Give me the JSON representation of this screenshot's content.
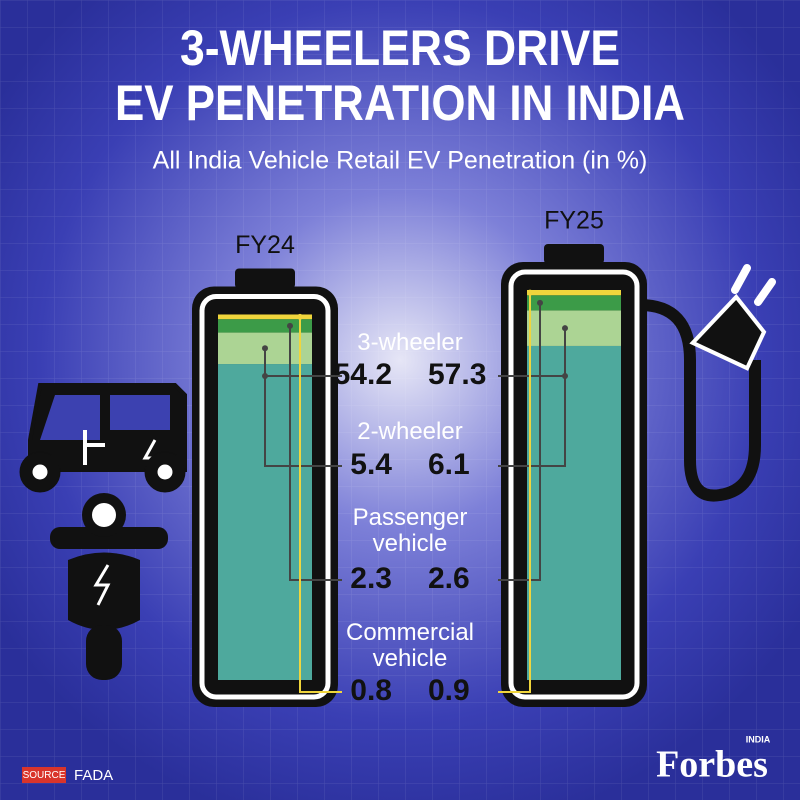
{
  "chart_data": {
    "type": "bar",
    "stacked": true,
    "title": [
      "3-WHEELERS DRIVE",
      "EV PENETRATION IN INDIA"
    ],
    "subtitle": "All India Vehicle Retail EV Penetration (in %)",
    "categories": [
      "FY24",
      "FY25"
    ],
    "series": [
      {
        "name": "3-wheeler",
        "color": "#4ea99d",
        "values": [
          54.2,
          57.3
        ]
      },
      {
        "name": "2-wheeler",
        "color": "#acd494",
        "values": [
          5.4,
          6.1
        ]
      },
      {
        "name": "Passenger vehicle",
        "color": "#3c9b48",
        "values": [
          2.3,
          2.6
        ]
      },
      {
        "name": "Commercial vehicle",
        "color": "#f0d53c",
        "values": [
          0.8,
          0.9
        ]
      }
    ]
  },
  "footer": {
    "source_label": "SOURCE",
    "source": "FADA",
    "brand": "Forbes",
    "brand_tag": "INDIA"
  }
}
